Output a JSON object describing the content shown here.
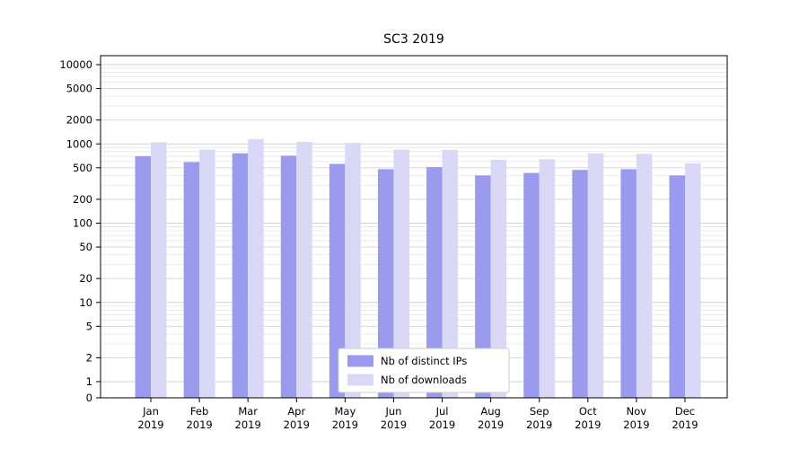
{
  "chart_data": {
    "type": "bar",
    "title": "SC3 2019",
    "categories": [
      "Jan",
      "Feb",
      "Mar",
      "Apr",
      "May",
      "Jun",
      "Jul",
      "Aug",
      "Sep",
      "Oct",
      "Nov",
      "Dec"
    ],
    "year": "2019",
    "series": [
      {
        "name": "Nb of distinct IPs",
        "color": "#9a9aee",
        "values": [
          700,
          590,
          760,
          710,
          560,
          480,
          510,
          400,
          430,
          470,
          480,
          400
        ]
      },
      {
        "name": "Nb of downloads",
        "color": "#d9d9f7",
        "values": [
          1050,
          850,
          1150,
          1060,
          1030,
          850,
          840,
          630,
          640,
          760,
          750,
          570
        ]
      }
    ],
    "yscale": "symlog",
    "yticks": [
      0,
      1,
      2,
      5,
      10,
      20,
      50,
      100,
      200,
      500,
      1000,
      2000,
      5000,
      10000
    ],
    "ylim": [
      0,
      10000
    ],
    "xlabel": "",
    "ylabel": "",
    "grid": true,
    "legend_position": "lower-center"
  }
}
